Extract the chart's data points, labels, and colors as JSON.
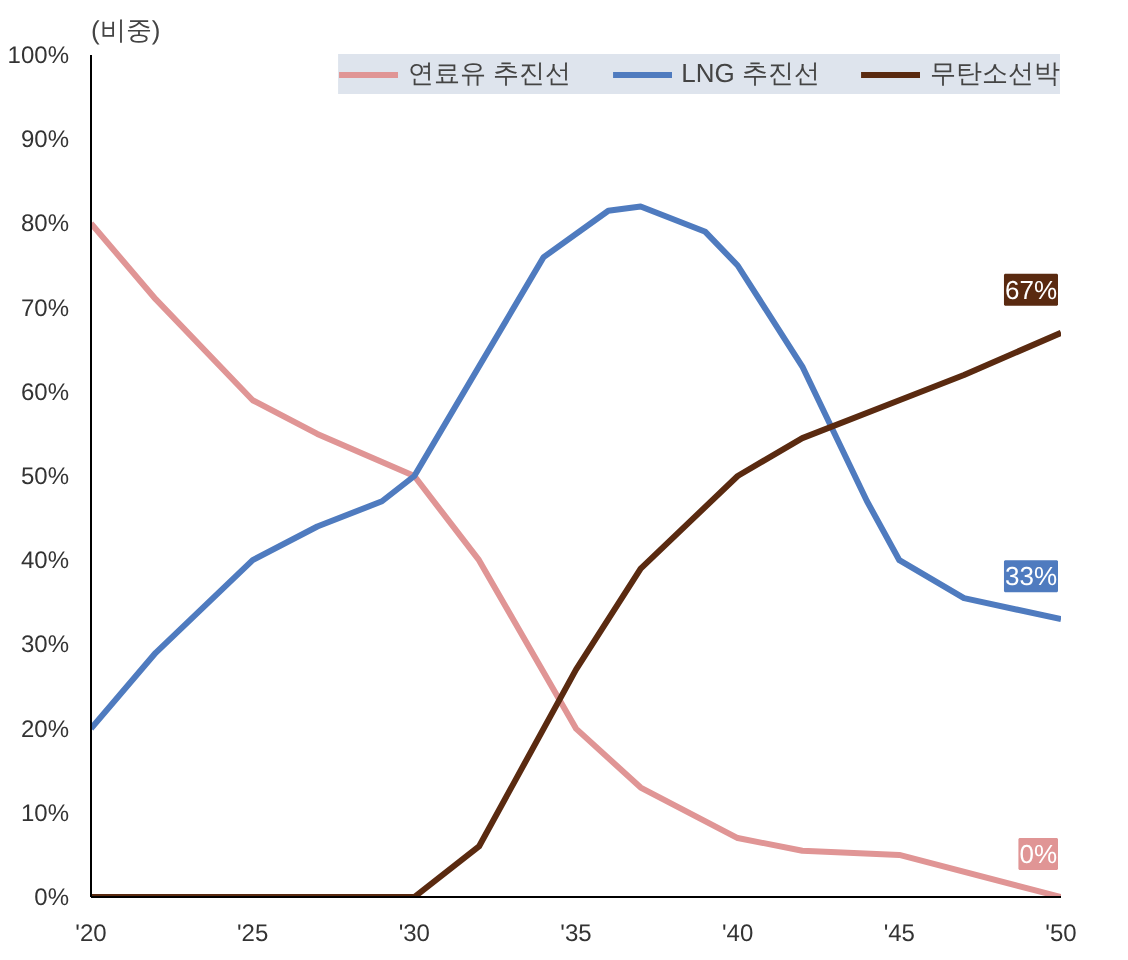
{
  "chart_data": {
    "type": "line",
    "ylabel": "(비중)",
    "legend": "top",
    "grid": false,
    "marker": "none",
    "line_style": "solid",
    "xlim": [
      2020,
      2050
    ],
    "xticks": [
      {
        "value": 2020,
        "label": "'20"
      },
      {
        "value": 2025,
        "label": "'25"
      },
      {
        "value": 2030,
        "label": "'30"
      },
      {
        "value": 2035,
        "label": "'35"
      },
      {
        "value": 2040,
        "label": "'40"
      },
      {
        "value": 2045,
        "label": "'45"
      },
      {
        "value": 2050,
        "label": "'50"
      }
    ],
    "ylim": [
      0,
      100
    ],
    "yticks": [
      {
        "value": 0,
        "label": "0%"
      },
      {
        "value": 10,
        "label": "10%"
      },
      {
        "value": 20,
        "label": "20%"
      },
      {
        "value": 30,
        "label": "30%"
      },
      {
        "value": 40,
        "label": "40%"
      },
      {
        "value": 50,
        "label": "50%"
      },
      {
        "value": 60,
        "label": "60%"
      },
      {
        "value": 70,
        "label": "70%"
      },
      {
        "value": 80,
        "label": "80%"
      },
      {
        "value": 90,
        "label": "90%"
      },
      {
        "value": 100,
        "label": "100%"
      }
    ],
    "series": [
      {
        "name": "연료유 추진선",
        "color": "#e09595",
        "x": [
          2020,
          2022,
          2025,
          2027,
          2030,
          2032,
          2035,
          2037,
          2040,
          2042,
          2045,
          2050
        ],
        "values": [
          80,
          71,
          59,
          55,
          50,
          40,
          20,
          13,
          7,
          5.5,
          5,
          0
        ],
        "value_labels": [
          null,
          null,
          null,
          null,
          null,
          null,
          null,
          null,
          null,
          null,
          null,
          "0%"
        ]
      },
      {
        "name": "LNG 추진선",
        "color": "#4f7bbf",
        "x": [
          2020,
          2022,
          2025,
          2027,
          2029,
          2030,
          2032,
          2034,
          2036,
          2037,
          2039,
          2040,
          2042,
          2044,
          2045,
          2047,
          2050
        ],
        "values": [
          20,
          29,
          40,
          44,
          47,
          50,
          63,
          76,
          81.5,
          82,
          79,
          75,
          63,
          47,
          40,
          35.5,
          33
        ],
        "value_labels": [
          null,
          null,
          null,
          null,
          null,
          null,
          null,
          null,
          null,
          null,
          null,
          null,
          null,
          null,
          null,
          null,
          "33%"
        ]
      },
      {
        "name": "무탄소선박",
        "color": "#5a2a10",
        "x": [
          2020,
          2025,
          2030,
          2032,
          2035,
          2037,
          2040,
          2042,
          2045,
          2047,
          2050
        ],
        "values": [
          0,
          0,
          0,
          6,
          27,
          39,
          50,
          54.5,
          59,
          62,
          67
        ],
        "value_labels": [
          null,
          null,
          null,
          null,
          null,
          null,
          null,
          null,
          null,
          null,
          "67%"
        ]
      }
    ]
  }
}
